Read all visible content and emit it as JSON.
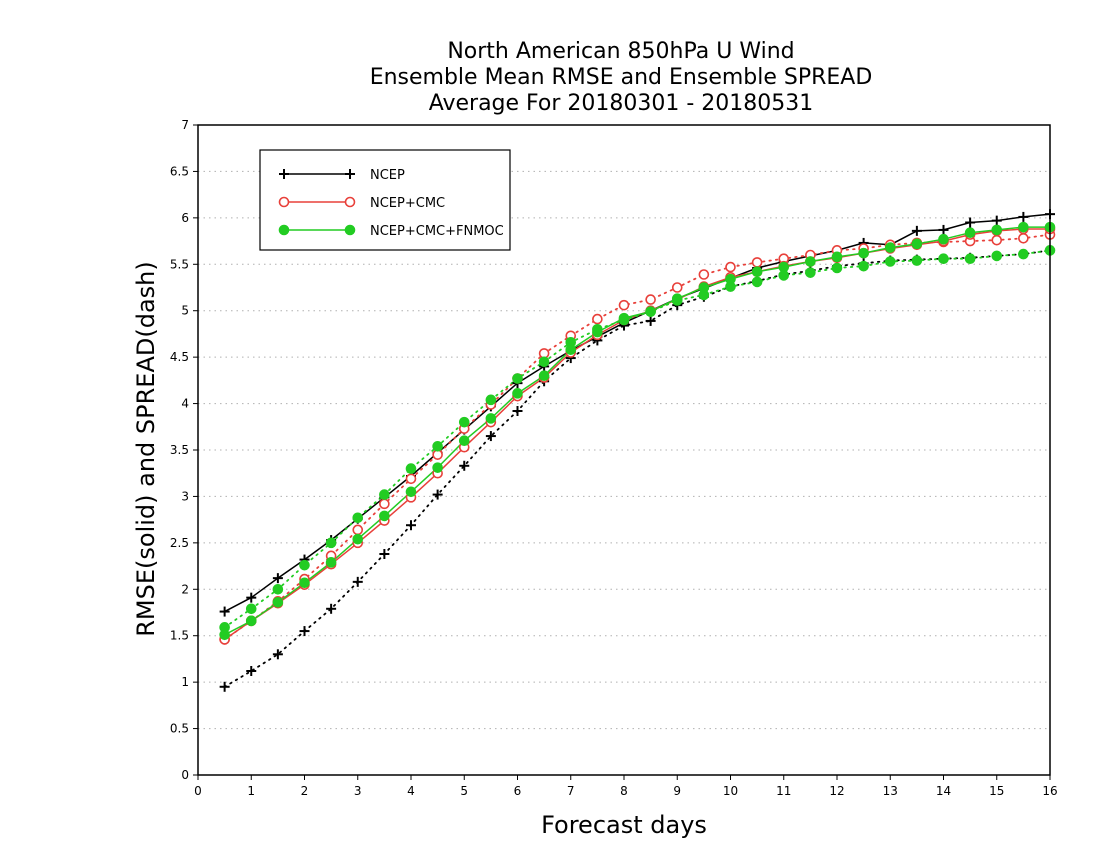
{
  "chart_data": {
    "type": "line",
    "title": [
      "North American 850hPa U Wind",
      "Ensemble Mean RMSE and Ensemble SPREAD",
      "Average For 20180301 - 20180531"
    ],
    "xlabel": "Forecast days",
    "ylabel": "RMSE(solid) and SPREAD(dash)",
    "xlim": [
      0,
      16
    ],
    "ylim": [
      0,
      7
    ],
    "xticks": [
      "0",
      "1",
      "2",
      "3",
      "4",
      "5",
      "6",
      "7",
      "8",
      "9",
      "10",
      "11",
      "12",
      "13",
      "14",
      "15",
      "16"
    ],
    "yticks": [
      "0",
      "0.5",
      "1",
      "1.5",
      "2",
      "2.5",
      "3",
      "3.5",
      "4",
      "4.5",
      "5",
      "5.5",
      "6",
      "6.5",
      "7"
    ],
    "grid": true,
    "legend_position": "top-left",
    "x": [
      0.5,
      1,
      1.5,
      2,
      2.5,
      3,
      3.5,
      4,
      4.5,
      5,
      5.5,
      6,
      6.5,
      7,
      7.5,
      8,
      8.5,
      9,
      9.5,
      10,
      10.5,
      11,
      11.5,
      12,
      12.5,
      13,
      13.5,
      14,
      14.5,
      15,
      15.5,
      16
    ],
    "series": [
      {
        "name": "NCEP",
        "color": "#000000",
        "marker": "plus",
        "rmse": [
          1.76,
          1.91,
          2.12,
          2.32,
          2.53,
          2.76,
          2.99,
          3.22,
          3.47,
          3.72,
          3.97,
          4.22,
          4.4,
          4.57,
          4.72,
          4.87,
          5.0,
          5.13,
          5.24,
          5.35,
          5.46,
          5.53,
          5.59,
          5.65,
          5.73,
          5.71,
          5.86,
          5.87,
          5.95,
          5.97,
          6.01,
          6.04
        ],
        "spread": [
          0.95,
          1.12,
          1.3,
          1.55,
          1.79,
          2.08,
          2.38,
          2.69,
          3.02,
          3.33,
          3.65,
          3.92,
          4.24,
          4.49,
          4.68,
          4.84,
          4.89,
          5.06,
          5.15,
          5.26,
          5.32,
          5.39,
          5.43,
          5.48,
          5.51,
          5.54,
          5.55,
          5.56,
          5.57,
          5.59,
          5.61,
          5.65
        ]
      },
      {
        "name": "NCEP+CMC",
        "color": "#e8403a",
        "marker": "open-circle",
        "rmse": [
          1.46,
          1.66,
          1.85,
          2.05,
          2.27,
          2.5,
          2.74,
          2.99,
          3.25,
          3.53,
          3.8,
          4.08,
          4.28,
          4.55,
          4.74,
          4.9,
          5.0,
          5.12,
          5.26,
          5.36,
          5.42,
          5.48,
          5.53,
          5.57,
          5.62,
          5.67,
          5.71,
          5.75,
          5.82,
          5.86,
          5.88,
          5.88
        ],
        "spread": [
          1.46,
          1.66,
          1.87,
          2.11,
          2.36,
          2.64,
          2.92,
          3.19,
          3.45,
          3.73,
          3.99,
          4.27,
          4.54,
          4.73,
          4.91,
          5.06,
          5.12,
          5.25,
          5.39,
          5.47,
          5.52,
          5.56,
          5.6,
          5.65,
          5.67,
          5.71,
          5.73,
          5.74,
          5.75,
          5.76,
          5.78,
          5.82
        ]
      },
      {
        "name": "NCEP+CMC+FNMOC",
        "color": "#22cc22",
        "marker": "filled-circle",
        "rmse": [
          1.51,
          1.66,
          1.86,
          2.07,
          2.29,
          2.54,
          2.79,
          3.05,
          3.31,
          3.6,
          3.84,
          4.11,
          4.3,
          4.58,
          4.77,
          4.92,
          4.99,
          5.13,
          5.25,
          5.34,
          5.42,
          5.47,
          5.53,
          5.58,
          5.62,
          5.68,
          5.72,
          5.77,
          5.84,
          5.87,
          5.9,
          5.9
        ],
        "spread": [
          1.59,
          1.79,
          2.0,
          2.26,
          2.5,
          2.77,
          3.02,
          3.3,
          3.54,
          3.8,
          4.04,
          4.27,
          4.45,
          4.66,
          4.8,
          4.9,
          4.99,
          5.11,
          5.17,
          5.26,
          5.31,
          5.38,
          5.41,
          5.46,
          5.48,
          5.53,
          5.54,
          5.56,
          5.56,
          5.59,
          5.61,
          5.65
        ]
      }
    ]
  }
}
